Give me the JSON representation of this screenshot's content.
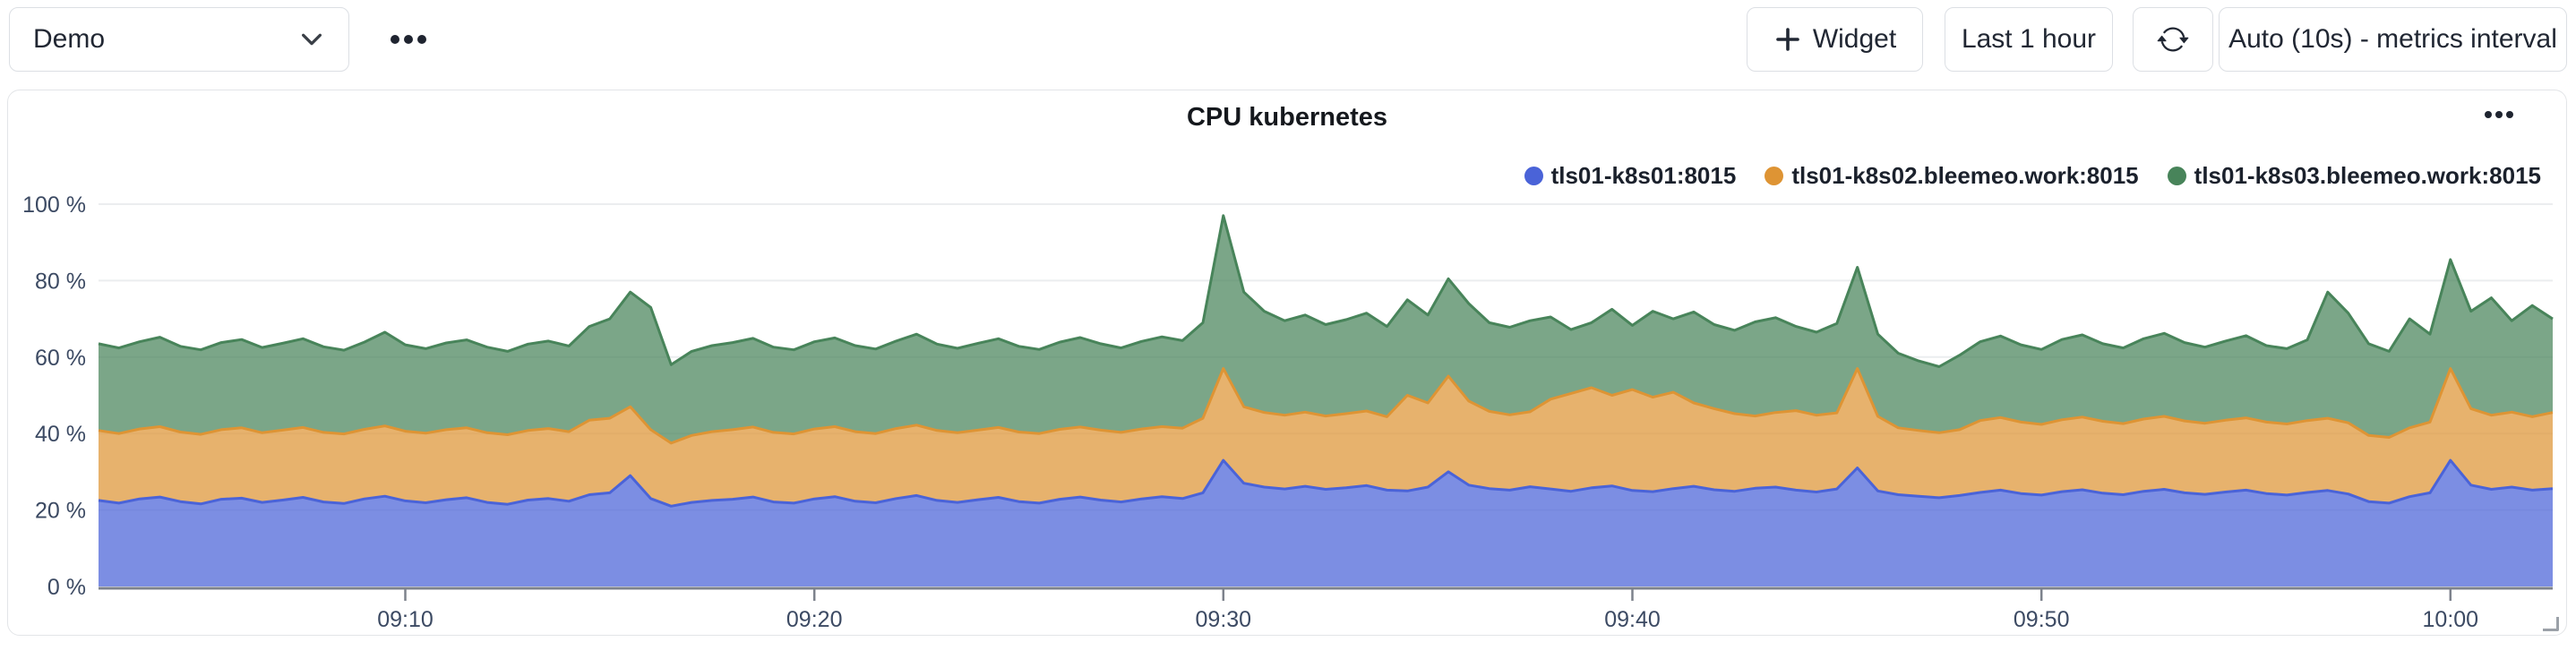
{
  "topbar": {
    "dashboard_select": {
      "value": "Demo"
    },
    "widget_button": {
      "label": "Widget"
    },
    "time_range_button": {
      "label": "Last 1 hour"
    },
    "interval_button": {
      "label": "Auto (10s) - metrics interval"
    }
  },
  "card": {
    "title": "CPU kubernetes"
  },
  "chart_data": {
    "type": "area",
    "stacked": true,
    "title": "CPU kubernetes",
    "ylabel": "",
    "xlabel": "",
    "ylim": [
      0,
      100
    ],
    "grid": true,
    "legend_position": "top-right",
    "x_start": "09:02:30",
    "x_end": "10:02:30",
    "x_step_seconds": 30,
    "x_tick_labels": [
      "09:10",
      "09:20",
      "09:30",
      "09:40",
      "09:50",
      "10:00"
    ],
    "x_tick_minutes_from_start": [
      7.5,
      17.5,
      27.5,
      37.5,
      47.5,
      57.5
    ],
    "y_tick_labels": [
      "0 %",
      "20 %",
      "40 %",
      "60 %",
      "80 %",
      "100 %"
    ],
    "representation": "cumulative_stack_tops_percent",
    "series": [
      {
        "name": "tls01-k8s01:8015",
        "color": "#4a63d8",
        "stack_top": [
          22.5,
          21.8,
          22.9,
          23.4,
          22.2,
          21.6,
          22.8,
          23.1,
          22.0,
          22.6,
          23.3,
          22.1,
          21.7,
          22.9,
          23.6,
          22.4,
          21.9,
          22.7,
          23.2,
          22.0,
          21.5,
          22.6,
          23.0,
          22.3,
          24.0,
          24.5,
          29.0,
          23.0,
          21.0,
          22.0,
          22.5,
          22.8,
          23.4,
          22.1,
          21.8,
          22.9,
          23.5,
          22.3,
          21.9,
          23.0,
          23.8,
          22.5,
          22.0,
          22.7,
          23.3,
          22.2,
          21.8,
          22.8,
          23.4,
          22.6,
          22.1,
          22.9,
          23.5,
          23.0,
          24.5,
          33.0,
          27.0,
          26.0,
          25.5,
          26.2,
          25.4,
          25.8,
          26.4,
          25.2,
          25.0,
          26.0,
          30.0,
          26.5,
          25.6,
          25.2,
          26.1,
          25.5,
          24.9,
          25.8,
          26.3,
          25.1,
          24.8,
          25.6,
          26.2,
          25.3,
          24.9,
          25.7,
          26.0,
          25.2,
          24.7,
          25.5,
          31.0,
          25.0,
          24.0,
          23.6,
          23.2,
          23.8,
          24.6,
          25.2,
          24.3,
          23.9,
          24.8,
          25.3,
          24.4,
          24.0,
          24.9,
          25.4,
          24.5,
          24.1,
          24.7,
          25.2,
          24.3,
          23.9,
          24.6,
          25.1,
          24.2,
          22.2,
          21.8,
          23.5,
          24.5,
          33.0,
          26.5,
          25.4,
          26.0,
          25.2,
          25.6
        ]
      },
      {
        "name": "tls01-k8s02.bleemeo.work:8015",
        "color": "#de9434",
        "stack_top": [
          40.8,
          40.0,
          41.2,
          41.8,
          40.4,
          39.8,
          41.0,
          41.5,
          40.2,
          40.9,
          41.6,
          40.3,
          39.9,
          41.1,
          42.0,
          40.6,
          40.1,
          41.0,
          41.5,
          40.2,
          39.7,
          40.8,
          41.3,
          40.5,
          43.5,
          44.0,
          47.0,
          41.0,
          37.5,
          39.5,
          40.5,
          41.0,
          41.7,
          40.3,
          39.9,
          41.2,
          41.8,
          40.5,
          40.0,
          41.3,
          42.2,
          40.8,
          40.2,
          40.9,
          41.6,
          40.4,
          40.0,
          41.1,
          41.7,
          40.9,
          40.3,
          41.2,
          41.8,
          41.4,
          44.0,
          57.0,
          47.0,
          45.5,
          44.8,
          45.6,
          44.6,
          45.2,
          45.9,
          44.4,
          50.0,
          48.0,
          55.0,
          48.5,
          45.8,
          44.9,
          45.7,
          49.0,
          50.5,
          52.0,
          50.0,
          51.5,
          49.5,
          50.8,
          48.0,
          46.5,
          45.2,
          44.6,
          45.5,
          46.0,
          44.8,
          45.4,
          57.0,
          44.5,
          41.5,
          40.8,
          40.2,
          41.0,
          43.4,
          44.2,
          43.0,
          42.4,
          43.6,
          44.3,
          43.2,
          42.6,
          43.8,
          44.5,
          43.3,
          42.7,
          43.5,
          44.1,
          43.0,
          42.5,
          43.4,
          44.0,
          42.8,
          39.5,
          39.0,
          41.5,
          43.0,
          57.0,
          46.5,
          44.8,
          45.6,
          44.4,
          45.5
        ]
      },
      {
        "name": "tls01-k8s03.bleemeo.work:8015",
        "color": "#48845a",
        "stack_top": [
          63.5,
          62.4,
          64.0,
          65.2,
          62.8,
          61.9,
          63.8,
          64.6,
          62.5,
          63.6,
          64.8,
          62.7,
          61.8,
          63.9,
          66.5,
          63.2,
          62.2,
          63.7,
          64.5,
          62.6,
          61.5,
          63.4,
          64.2,
          62.9,
          68.0,
          70.0,
          77.0,
          73.0,
          58.0,
          61.5,
          63.0,
          63.8,
          64.9,
          62.6,
          61.9,
          64.0,
          65.0,
          63.0,
          62.1,
          64.2,
          66.0,
          63.4,
          62.3,
          63.6,
          64.8,
          62.8,
          62.0,
          63.9,
          65.1,
          63.5,
          62.4,
          64.1,
          65.3,
          64.3,
          69.0,
          97.0,
          77.0,
          72.0,
          69.5,
          71.0,
          68.5,
          69.8,
          71.5,
          68.0,
          75.0,
          71.0,
          80.5,
          74.0,
          69.0,
          67.8,
          69.5,
          70.5,
          67.2,
          69.0,
          72.5,
          68.3,
          72.0,
          70.0,
          71.8,
          68.5,
          67.0,
          69.2,
          70.3,
          68.0,
          66.5,
          68.8,
          83.5,
          66.0,
          61.0,
          59.0,
          57.5,
          60.5,
          64.0,
          65.5,
          63.2,
          62.0,
          64.6,
          65.8,
          63.5,
          62.4,
          64.8,
          66.2,
          63.8,
          62.6,
          64.2,
          65.6,
          63.0,
          62.2,
          64.5,
          77.0,
          71.5,
          63.5,
          61.5,
          70.0,
          66.0,
          85.5,
          72.0,
          75.5,
          69.5,
          73.5,
          70.0
        ]
      }
    ]
  }
}
